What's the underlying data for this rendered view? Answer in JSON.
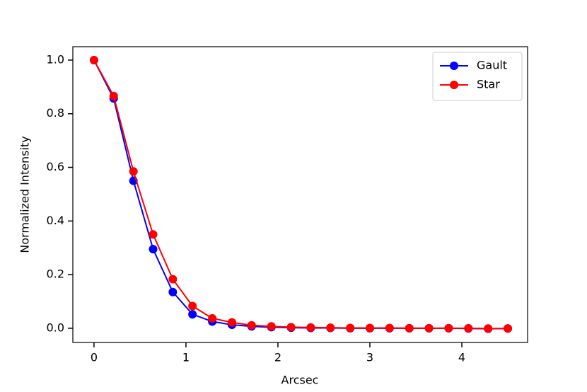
{
  "chart_data": {
    "type": "line",
    "x_label": "Arcsec",
    "y_label": "Normalized Intensity",
    "x": [
      0,
      0.214,
      0.429,
      0.643,
      0.857,
      1.071,
      1.286,
      1.5,
      1.714,
      1.929,
      2.143,
      2.357,
      2.571,
      2.786,
      3.0,
      3.214,
      3.429,
      3.643,
      3.857,
      4.071,
      4.286,
      4.5
    ],
    "series": [
      {
        "name": "Gault",
        "color": "#0000ff",
        "values": [
          1.0,
          0.857,
          0.55,
          0.295,
          0.135,
          0.052,
          0.025,
          0.013,
          0.007,
          0.004,
          0.002,
          0.001,
          0.001,
          0,
          0,
          0,
          0,
          0,
          0,
          -0.001,
          -0.002,
          -0.001
        ]
      },
      {
        "name": "Star",
        "color": "#ff0000",
        "values": [
          1.0,
          0.866,
          0.585,
          0.35,
          0.183,
          0.083,
          0.037,
          0.022,
          0.011,
          0.007,
          0.004,
          0.003,
          0.002,
          0.001,
          0.001,
          0.001,
          0,
          0,
          0,
          0,
          -0.001,
          -0.001
        ]
      }
    ],
    "xlim": [
      -0.23,
      4.715
    ],
    "ylim": [
      -0.053,
      1.05
    ],
    "xticks": [
      0,
      1,
      2,
      3,
      4
    ],
    "yticks": [
      {
        "value": 0,
        "label": "0.0"
      },
      0.2,
      0.4,
      0.6,
      0.8,
      {
        "value": 1,
        "label": "1.0"
      }
    ],
    "legend": "upper right",
    "grid": false
  }
}
